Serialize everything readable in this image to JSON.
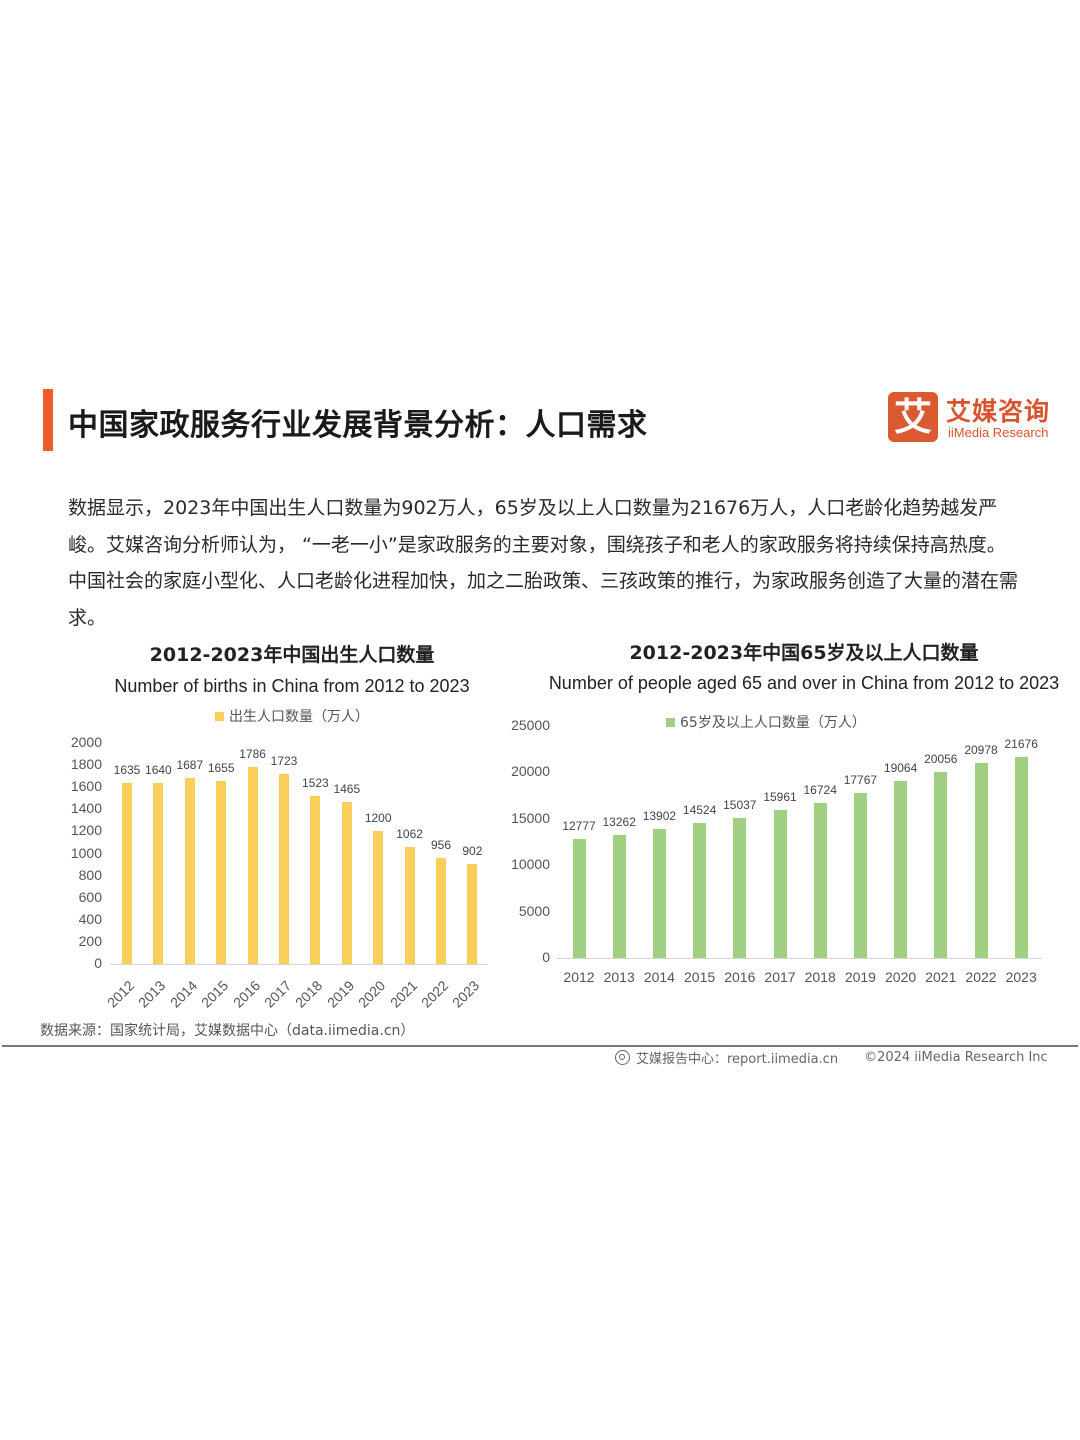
{
  "header": {
    "title": "中国家政服务行业发展背景分析：人口需求",
    "accent_color": "#ee5a2a"
  },
  "logo": {
    "icon_char": "艾",
    "name_cn": "艾媒咨询",
    "name_en": "iiMedia Research",
    "color": "#d9542c"
  },
  "summary": {
    "text": "数据显示，2023年中国出生人口数量为902万人，65岁及以上人口数量为21676万人，人口老龄化趋势越发严峻。艾媒咨询分析师认为， “一老一小”是家政服务的主要对象，围绕孩子和老人的家政服务将持续保持高热度。中国社会的家庭小型化、人口老龄化进程加快，加之二胎政策、三孩政策的推行，为家政服务创造了大量的潜在需求。"
  },
  "chart_data": [
    {
      "type": "bar",
      "title": "2012-2023年中国出生人口数量",
      "subtitle": "Number of births in China from 2012 to 2023",
      "legend": [
        "出生人口数量（万人）"
      ],
      "legend_position": "top",
      "categories": [
        "2012",
        "2013",
        "2014",
        "2015",
        "2016",
        "2017",
        "2018",
        "2019",
        "2020",
        "2021",
        "2022",
        "2023"
      ],
      "values": [
        1635,
        1640,
        1687,
        1655,
        1786,
        1723,
        1523,
        1465,
        1200,
        1062,
        956,
        902
      ],
      "xlabel": "",
      "ylabel": "",
      "ylim": [
        0,
        2000
      ],
      "yticks": [
        0,
        200,
        400,
        600,
        800,
        1000,
        1200,
        1400,
        1600,
        1800,
        2000
      ],
      "grid": false,
      "color": "#f9cf5a",
      "x_tick_rotation": -45
    },
    {
      "type": "bar",
      "title": "2012-2023年中国65岁及以上人口数量",
      "subtitle": "Number of people aged 65 and over in China from 2012 to 2023",
      "legend": [
        "65岁及以上人口数量（万人）"
      ],
      "legend_position": "top",
      "categories": [
        "2012",
        "2013",
        "2014",
        "2015",
        "2016",
        "2017",
        "2018",
        "2019",
        "2020",
        "2021",
        "2022",
        "2023"
      ],
      "values": [
        12777,
        13262,
        13902,
        14524,
        15037,
        15961,
        16724,
        17767,
        19064,
        20056,
        20978,
        21676
      ],
      "xlabel": "",
      "ylabel": "",
      "ylim": [
        0,
        25000
      ],
      "yticks": [
        0,
        5000,
        10000,
        15000,
        20000,
        25000
      ],
      "grid": false,
      "color": "#a2d083",
      "x_tick_rotation": 0
    }
  ],
  "source": "数据来源：国家统计局，艾媒数据中心（data.iimedia.cn）",
  "footer": {
    "report_center": "艾媒报告中心：report.iimedia.cn",
    "copyright": "©2024  iiMedia Research  Inc"
  }
}
